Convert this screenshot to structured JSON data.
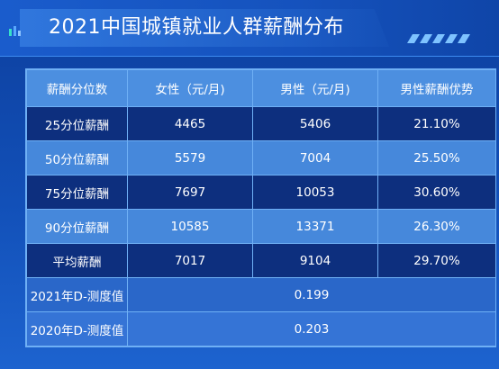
{
  "title": "2021中国城镇就业人群薪酬分布",
  "colors": {
    "accent": "#4c8fe0",
    "dark_row": "#0d2f7e",
    "light_row": "#4688db",
    "border": "#6fb0f5"
  },
  "table": {
    "headers": [
      "薪酬分位数",
      "女性（元/月)",
      "男性（元/月)",
      "男性薪酬优势"
    ],
    "rows": [
      {
        "label": "25分位薪酬",
        "female": "4465",
        "male": "5406",
        "advantage": "21.10%"
      },
      {
        "label": "50分位薪酬",
        "female": "5579",
        "male": "7004",
        "advantage": "25.50%"
      },
      {
        "label": "75分位薪酬",
        "female": "7697",
        "male": "10053",
        "advantage": "30.60%"
      },
      {
        "label": "90分位薪酬",
        "female": "10585",
        "male": "13371",
        "advantage": "26.30%"
      },
      {
        "label": "平均薪酬",
        "female": "7017",
        "male": "9104",
        "advantage": "29.70%"
      }
    ],
    "d_rows": [
      {
        "label": "2021年D-测度值",
        "value": "0.199"
      },
      {
        "label": "2020年D-测度值",
        "value": "0.203"
      }
    ]
  }
}
